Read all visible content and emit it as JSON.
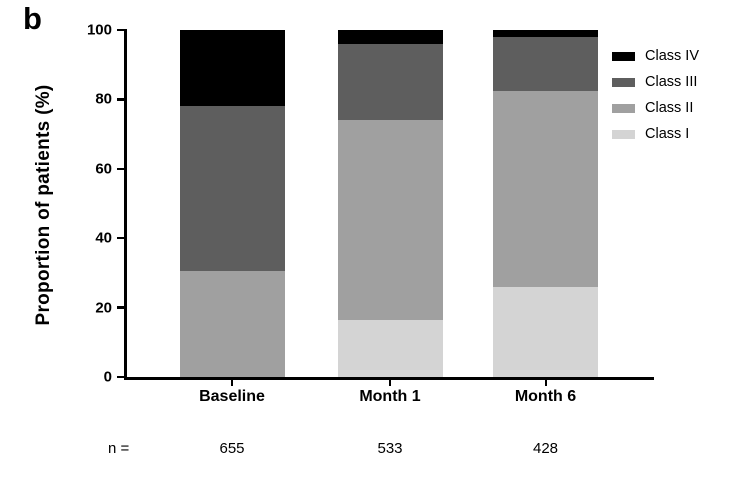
{
  "panel_label": "b",
  "chart_data": {
    "type": "bar",
    "stacked": true,
    "title": "",
    "xlabel": "",
    "ylabel": "Proportion of patients (%)",
    "ylim": [
      0,
      100
    ],
    "yticks": [
      0,
      20,
      40,
      60,
      80,
      100
    ],
    "grid": false,
    "categories": [
      "Baseline",
      "Month 1",
      "Month 6"
    ],
    "series": [
      {
        "name": "Class I",
        "color": "#d4d4d4",
        "values": [
          0,
          16.5,
          26
        ]
      },
      {
        "name": "Class II",
        "color": "#a0a0a0",
        "values": [
          30.5,
          57.5,
          56.5
        ]
      },
      {
        "name": "Class III",
        "color": "#5e5e5e",
        "values": [
          47.5,
          22,
          15.5
        ]
      },
      {
        "name": "Class IV",
        "color": "#000000",
        "values": [
          22,
          4,
          2
        ]
      }
    ],
    "legend": {
      "position": "top-right",
      "order": [
        "Class IV",
        "Class III",
        "Class II",
        "Class I"
      ]
    },
    "n_label": "n =",
    "n_values": [
      "655",
      "533",
      "428"
    ]
  }
}
